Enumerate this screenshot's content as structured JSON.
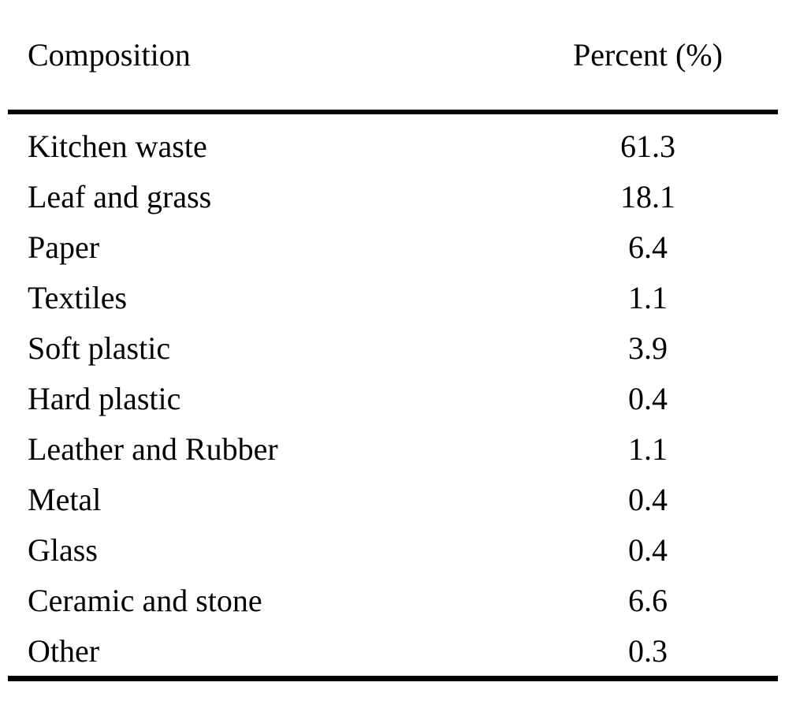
{
  "page": {
    "background_color": "#ffffff",
    "text_color": "#000000",
    "rule_color": "#000000"
  },
  "table": {
    "header": {
      "composition_label": "Composition",
      "percent_label": "Percent (%)"
    },
    "rows": [
      {
        "composition": "Kitchen waste",
        "percent": "61.3"
      },
      {
        "composition": "Leaf and grass",
        "percent": "18.1"
      },
      {
        "composition": "Paper",
        "percent": "6.4"
      },
      {
        "composition": "Textiles",
        "percent": "1.1"
      },
      {
        "composition": "Soft plastic",
        "percent": "3.9"
      },
      {
        "composition": "Hard plastic",
        "percent": "0.4"
      },
      {
        "composition": "Leather and Rubber",
        "percent": "1.1"
      },
      {
        "composition": "Metal",
        "percent": "0.4"
      },
      {
        "composition": "Glass",
        "percent": "0.4"
      },
      {
        "composition": "Ceramic and stone",
        "percent": "6.6"
      },
      {
        "composition": "Other",
        "percent": "0.3"
      }
    ]
  },
  "chart_data": {
    "type": "table",
    "columns": [
      "Composition",
      "Percent (%)"
    ],
    "categories": [
      "Kitchen waste",
      "Leaf and grass",
      "Paper",
      "Textiles",
      "Soft plastic",
      "Hard plastic",
      "Leather and Rubber",
      "Metal",
      "Glass",
      "Ceramic and stone",
      "Other"
    ],
    "values": [
      61.3,
      18.1,
      6.4,
      1.1,
      3.9,
      0.4,
      1.1,
      0.4,
      0.4,
      6.6,
      0.3
    ],
    "title": "",
    "legend": "none",
    "grid": "off"
  }
}
